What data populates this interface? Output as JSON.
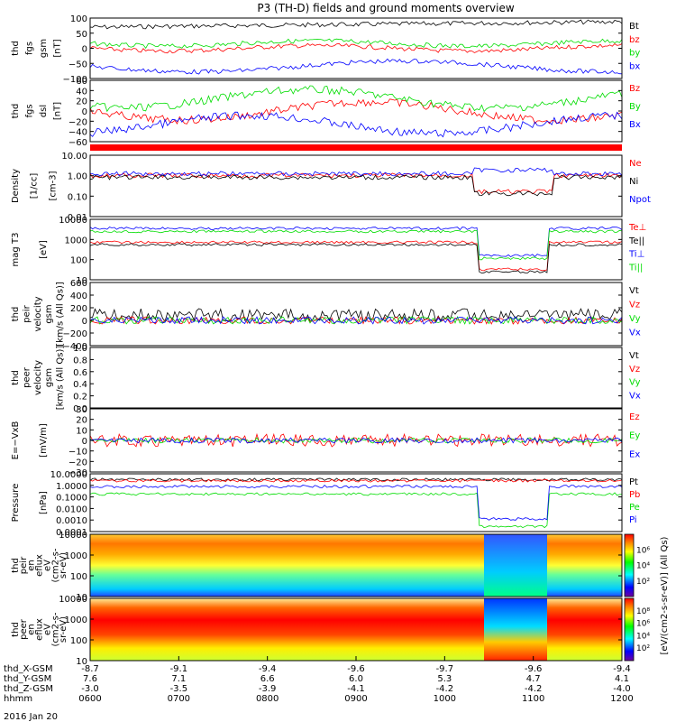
{
  "title": "P3 (TH-D) fields and ground moments overview",
  "date": "2016 Jan 20",
  "colors": {
    "black": "#000000",
    "red": "#ff0000",
    "green": "#00dd00",
    "blue": "#0000ff",
    "cyan": "#00cccc"
  },
  "chart_data": {
    "type": "line",
    "x_axis": {
      "rows": [
        {
          "label": "thd_X-GSM",
          "values": [
            "-8.7",
            "-9.1",
            "-9.4",
            "-9.6",
            "-9.7",
            "-9.6",
            "-9.4"
          ]
        },
        {
          "label": "thd_Y-GSM",
          "values": [
            "7.6",
            "7.1",
            "6.6",
            "6.0",
            "5.3",
            "4.7",
            "4.1"
          ]
        },
        {
          "label": "thd_Z-GSM",
          "values": [
            "-3.0",
            "-3.5",
            "-3.9",
            "-4.1",
            "-4.2",
            "-4.2",
            "-4.0"
          ]
        },
        {
          "label": "hhmm",
          "values": [
            "0600",
            "0700",
            "0800",
            "0900",
            "1000",
            "1100",
            "1200"
          ]
        }
      ],
      "time_range": [
        "0600",
        "1200"
      ]
    },
    "panels": [
      {
        "id": "fgs-gsm",
        "ylabel": [
          "thd",
          "fgs",
          "gsm",
          "[nT]"
        ],
        "yticks": [
          "100",
          "50",
          "0",
          "−50",
          "−100"
        ],
        "ylim": [
          -100,
          100
        ],
        "series": [
          {
            "name": "Bt",
            "color": "black",
            "level": 75
          },
          {
            "name": "bz",
            "color": "red",
            "level": 10
          },
          {
            "name": "by",
            "color": "green",
            "level": 25
          },
          {
            "name": "bx",
            "color": "blue",
            "level": -60
          }
        ]
      },
      {
        "id": "fgs-dsl",
        "ylabel": [
          "thd",
          "fgs",
          "dsl",
          "[nT]"
        ],
        "yticks": [
          "60",
          "40",
          "20",
          "0",
          "−20",
          "−40",
          "−60"
        ],
        "ylim": [
          -70,
          60
        ],
        "series": [
          {
            "name": "Bz",
            "color": "red",
            "level": 0
          },
          {
            "name": "By",
            "color": "green",
            "level": 20
          },
          {
            "name": "Bx",
            "color": "blue",
            "level": -30
          }
        ]
      },
      {
        "id": "density",
        "ylabel": [
          "Density",
          "[1/cc]",
          "[cm-3]"
        ],
        "yticks": [
          "10.00",
          "1.00",
          "0.10",
          "0.01"
        ],
        "ylim": [
          0.01,
          10
        ],
        "log": true,
        "series": [
          {
            "name": "Ne",
            "color": "red"
          },
          {
            "name": "Ni",
            "color": "black"
          },
          {
            "name": "Npot",
            "color": "blue"
          }
        ]
      },
      {
        "id": "temperature",
        "ylabel": [
          "mag T3",
          "[eV]"
        ],
        "yticks": [
          "10000",
          "1000",
          "100",
          "10"
        ],
        "ylim": [
          10,
          10000
        ],
        "log": true,
        "series": [
          {
            "name": "Te⊥",
            "color": "red"
          },
          {
            "name": "Te||",
            "color": "black"
          },
          {
            "name": "Ti⊥",
            "color": "blue"
          },
          {
            "name": "Ti||",
            "color": "green"
          }
        ]
      },
      {
        "id": "peir-velocity",
        "ylabel": [
          "thd",
          "peir",
          "velocity",
          "gsm",
          "[km/s (All Qs)]"
        ],
        "yticks": [
          "600",
          "400",
          "200",
          "0",
          "−200",
          "−400"
        ],
        "ylim": [
          -400,
          600
        ],
        "series": [
          {
            "name": "Vt",
            "color": "black"
          },
          {
            "name": "Vz",
            "color": "red"
          },
          {
            "name": "Vy",
            "color": "green"
          },
          {
            "name": "Vx",
            "color": "blue"
          }
        ]
      },
      {
        "id": "peer-velocity",
        "ylabel": [
          "thd",
          "peer",
          "velocity",
          "gsm",
          "[km/s (All Qs)]"
        ],
        "yticks": [
          "1.0",
          "0.8",
          "0.6",
          "0.4",
          "0.2",
          "0.0"
        ],
        "ylim": [
          0,
          1
        ],
        "series": [
          {
            "name": "Vt",
            "color": "black"
          },
          {
            "name": "Vz",
            "color": "red"
          },
          {
            "name": "Vy",
            "color": "green"
          },
          {
            "name": "Vx",
            "color": "blue"
          }
        ]
      },
      {
        "id": "efield",
        "ylabel": [
          "E=−VxB",
          "[mV/m]"
        ],
        "yticks": [
          "30",
          "20",
          "10",
          "0",
          "−10",
          "−20",
          "−30"
        ],
        "ylim": [
          -30,
          30
        ],
        "series": [
          {
            "name": "Ez",
            "color": "red"
          },
          {
            "name": "Ey",
            "color": "green"
          },
          {
            "name": "Ex",
            "color": "blue"
          }
        ]
      },
      {
        "id": "pressure",
        "ylabel": [
          "Pressure",
          "[nPa]"
        ],
        "yticks": [
          "10.0000",
          "1.0000",
          "0.1000",
          "0.0100",
          "0.0010",
          "0.0001"
        ],
        "ylim": [
          0.0001,
          10
        ],
        "log": true,
        "series": [
          {
            "name": "Pt",
            "color": "black"
          },
          {
            "name": "Pb",
            "color": "red"
          },
          {
            "name": "Pe",
            "color": "green"
          },
          {
            "name": "Pi",
            "color": "blue"
          }
        ]
      },
      {
        "id": "peir-spec",
        "ylabel": [
          "thd",
          "peir",
          "en",
          "eflux",
          "eV",
          "(cm2-s-",
          "sr-eV)"
        ],
        "yticks": [
          "10000",
          "1000",
          "100",
          "10"
        ],
        "type": "heatmap"
      },
      {
        "id": "peer-spec",
        "ylabel": [
          "thd",
          "peer",
          "en",
          "eflux",
          "eV",
          "(cm2-s-",
          "sr-eV)"
        ],
        "yticks": [
          "10000",
          "1000",
          "100",
          "10"
        ],
        "type": "heatmap"
      }
    ],
    "colorbar": {
      "label": "[eV/(cm2-s-sr-eV)] (All Qs)",
      "ticks_ion": [
        "10⁶",
        "10⁴",
        "10²"
      ],
      "ticks_electron": [
        "10⁸",
        "10⁶",
        "10⁴",
        "10²"
      ]
    }
  }
}
